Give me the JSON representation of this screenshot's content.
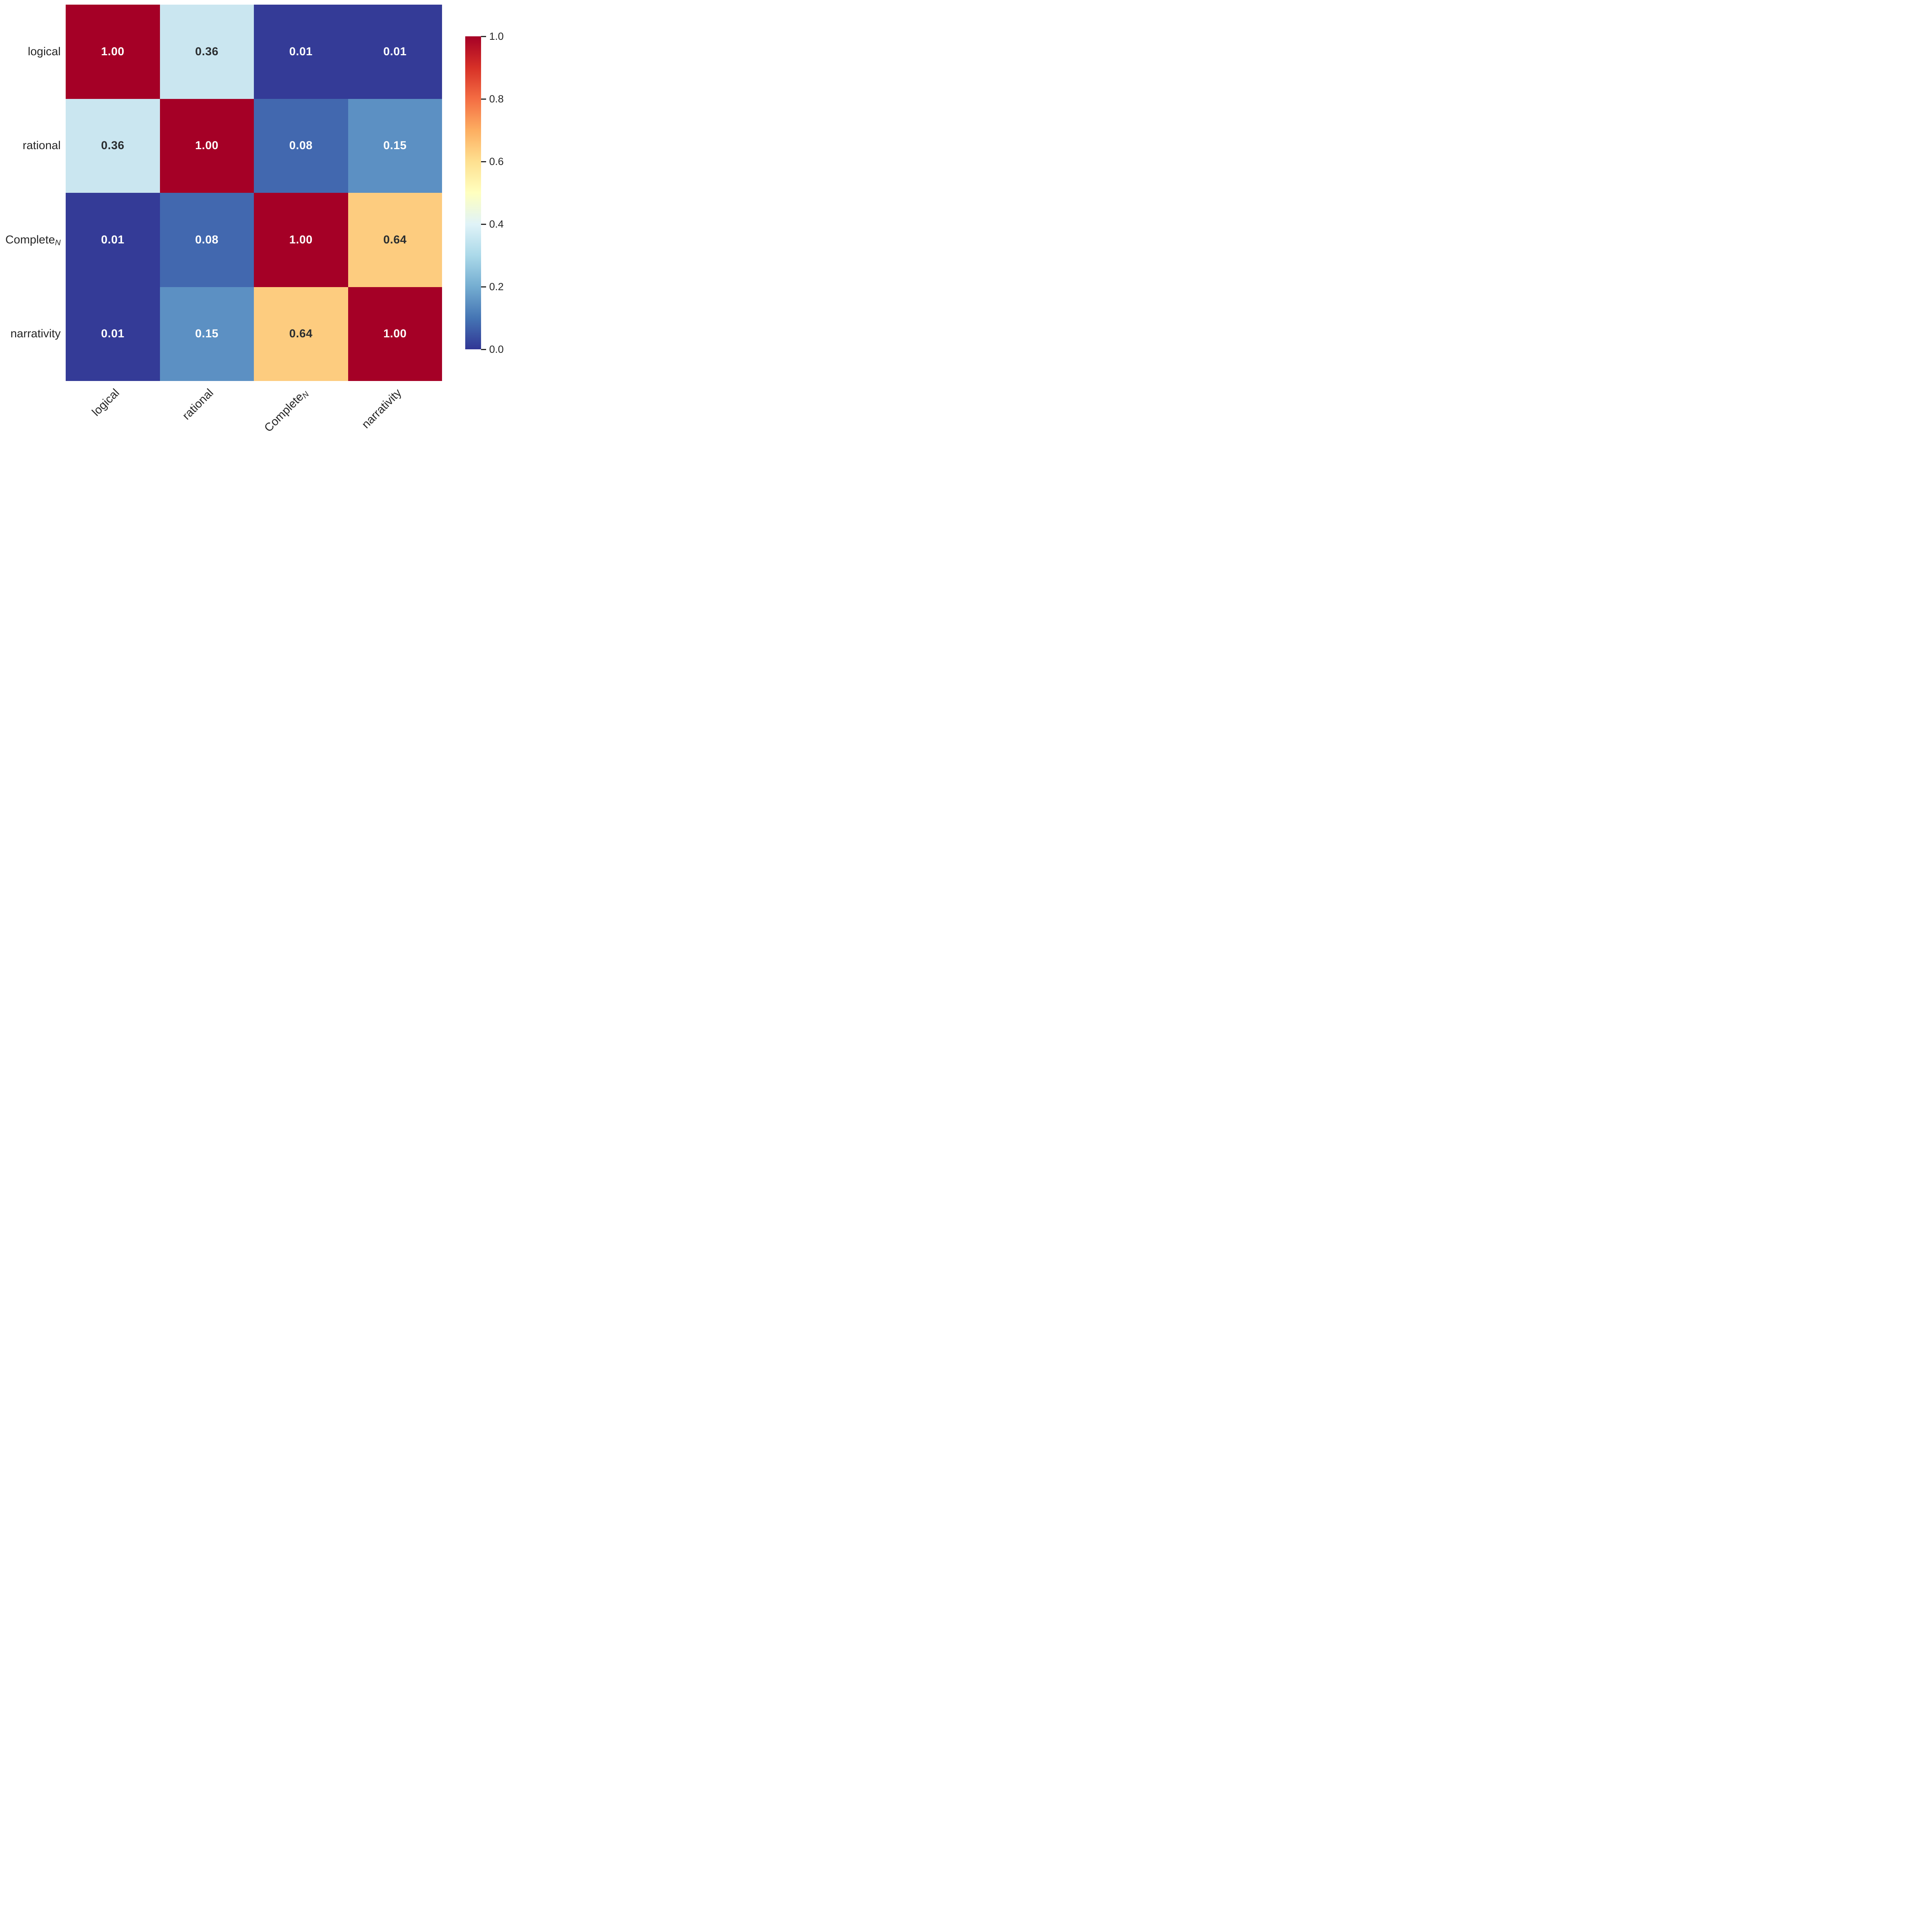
{
  "chart_data": {
    "type": "heatmap",
    "title": "",
    "xlabel": "",
    "ylabel": "",
    "categories": [
      "logical",
      "rational",
      "CompleteN",
      "narrativity"
    ],
    "matrix": [
      [
        1.0,
        0.36,
        0.01,
        0.01
      ],
      [
        0.36,
        1.0,
        0.08,
        0.15
      ],
      [
        0.01,
        0.08,
        1.0,
        0.64
      ],
      [
        0.01,
        0.15,
        0.64,
        1.0
      ]
    ],
    "cell_labels": [
      [
        "1.00",
        "0.36",
        "0.01",
        "0.01"
      ],
      [
        "0.36",
        "1.00",
        "0.08",
        "0.15"
      ],
      [
        "0.01",
        "0.08",
        "1.00",
        "0.64"
      ],
      [
        "0.01",
        "0.15",
        "0.64",
        "1.00"
      ]
    ],
    "cell_colors": [
      [
        "#a50026",
        "#cae6f0",
        "#343b97",
        "#343b97"
      ],
      [
        "#cae6f0",
        "#a50026",
        "#4268af",
        "#5c90c3"
      ],
      [
        "#343b97",
        "#4268af",
        "#a50026",
        "#fdcc7f"
      ],
      [
        "#343b97",
        "#5c90c3",
        "#fdcc7f",
        "#a50026"
      ]
    ],
    "cell_text_colors": [
      [
        "#ffffff",
        "#2b2e30",
        "#ffffff",
        "#ffffff"
      ],
      [
        "#2b2e30",
        "#ffffff",
        "#ffffff",
        "#ffffff"
      ],
      [
        "#ffffff",
        "#ffffff",
        "#ffffff",
        "#2b2e30"
      ],
      [
        "#ffffff",
        "#ffffff",
        "#2b2e30",
        "#ffffff"
      ]
    ],
    "colormap": "RdYlBu_r",
    "vmin": 0.0,
    "vmax": 1.0,
    "colorbar_ticks": [
      "1.0",
      "0.8",
      "0.6",
      "0.4",
      "0.2",
      "0.0"
    ],
    "legend_position": "right-colorbar",
    "grid": false
  },
  "axis": {
    "row_labels": [
      {
        "base": "logical",
        "sub": ""
      },
      {
        "base": "rational",
        "sub": ""
      },
      {
        "base": "Complete",
        "sub": "N"
      },
      {
        "base": "narrativity",
        "sub": ""
      }
    ],
    "col_labels": [
      {
        "base": "logical",
        "sub": ""
      },
      {
        "base": "rational",
        "sub": ""
      },
      {
        "base": "Complete",
        "sub": "N"
      },
      {
        "base": "narrativity",
        "sub": ""
      }
    ]
  },
  "colors": {
    "background": "#ffffff",
    "axis_text": "#262626",
    "annotation_dark": "#2b2e30",
    "annotation_light": "#ffffff",
    "colorbar_top": "#a50026",
    "colorbar_middle": "#ffffbf",
    "colorbar_bottom": "#313695"
  }
}
